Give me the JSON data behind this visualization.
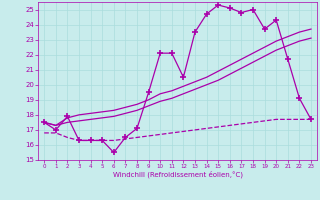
{
  "title": "",
  "xlabel": "Windchill (Refroidissement éolien,°C)",
  "background_color": "#c8ecec",
  "line_color": "#aa00aa",
  "xlim": [
    -0.5,
    23.5
  ],
  "ylim": [
    15,
    25.5
  ],
  "yticks": [
    15,
    16,
    17,
    18,
    19,
    20,
    21,
    22,
    23,
    24,
    25
  ],
  "xticks": [
    0,
    1,
    2,
    3,
    4,
    5,
    6,
    7,
    8,
    9,
    10,
    11,
    12,
    13,
    14,
    15,
    16,
    17,
    18,
    19,
    20,
    21,
    22,
    23
  ],
  "grid_color": "#aadddd",
  "series": [
    {
      "x": [
        0,
        1,
        2,
        3,
        4,
        5,
        6,
        7,
        8,
        9,
        10,
        11,
        12,
        13,
        14,
        15,
        16,
        17,
        18,
        19,
        20,
        21,
        22,
        23
      ],
      "y": [
        17.5,
        17.0,
        17.9,
        16.3,
        16.3,
        16.3,
        15.5,
        16.5,
        17.1,
        19.5,
        22.1,
        22.1,
        20.5,
        23.5,
        24.7,
        25.3,
        25.1,
        24.8,
        25.0,
        23.7,
        24.3,
        21.7,
        19.1,
        17.7
      ],
      "marker": "+",
      "markersize": 4,
      "linewidth": 0.9,
      "color": "#aa00aa",
      "linestyle": "solid"
    },
    {
      "x": [
        0,
        1,
        2,
        3,
        4,
        5,
        6,
        7,
        8,
        9,
        10,
        11,
        12,
        13,
        14,
        15,
        16,
        17,
        18,
        19,
        20,
        21,
        22,
        23
      ],
      "y": [
        17.5,
        17.3,
        17.5,
        17.6,
        17.7,
        17.8,
        17.9,
        18.1,
        18.3,
        18.6,
        18.9,
        19.1,
        19.4,
        19.7,
        20.0,
        20.3,
        20.7,
        21.1,
        21.5,
        21.9,
        22.3,
        22.6,
        22.9,
        23.1
      ],
      "marker": null,
      "markersize": 0,
      "linewidth": 0.9,
      "color": "#aa00aa",
      "linestyle": "solid"
    },
    {
      "x": [
        0,
        1,
        2,
        3,
        4,
        5,
        6,
        7,
        8,
        9,
        10,
        11,
        12,
        13,
        14,
        15,
        16,
        17,
        18,
        19,
        20,
        21,
        22,
        23
      ],
      "y": [
        17.5,
        17.3,
        17.8,
        18.0,
        18.1,
        18.2,
        18.3,
        18.5,
        18.7,
        19.0,
        19.4,
        19.6,
        19.9,
        20.2,
        20.5,
        20.9,
        21.3,
        21.7,
        22.1,
        22.5,
        22.9,
        23.2,
        23.5,
        23.7
      ],
      "marker": null,
      "markersize": 0,
      "linewidth": 0.9,
      "color": "#aa00aa",
      "linestyle": "solid"
    },
    {
      "x": [
        0,
        1,
        2,
        3,
        4,
        5,
        6,
        7,
        8,
        9,
        10,
        11,
        12,
        13,
        14,
        15,
        16,
        17,
        18,
        19,
        20,
        21,
        22,
        23
      ],
      "y": [
        16.8,
        16.8,
        16.5,
        16.3,
        16.3,
        16.3,
        16.3,
        16.4,
        16.5,
        16.6,
        16.7,
        16.8,
        16.9,
        17.0,
        17.1,
        17.2,
        17.3,
        17.4,
        17.5,
        17.6,
        17.7,
        17.7,
        17.7,
        17.7
      ],
      "marker": null,
      "markersize": 0,
      "linewidth": 0.9,
      "color": "#aa00aa",
      "linestyle": "dashed"
    }
  ]
}
